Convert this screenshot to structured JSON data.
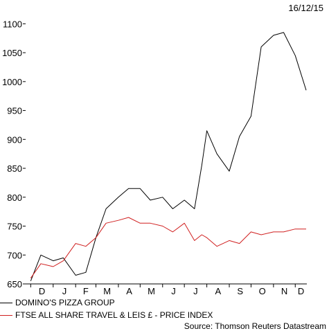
{
  "chart_data": {
    "type": "line",
    "date_label": "16/12/15",
    "y_ticks": [
      650,
      700,
      750,
      800,
      850,
      900,
      950,
      1000,
      1050,
      1100
    ],
    "ylim": [
      650,
      1110
    ],
    "x_ticks": [
      "D",
      "J",
      "F",
      "M",
      "A",
      "M",
      "J",
      "J",
      "A",
      "S",
      "O",
      "N",
      "D"
    ],
    "x": [
      "2014-12-01",
      "2014-12-15",
      "2015-01-01",
      "2015-01-15",
      "2015-02-01",
      "2015-02-15",
      "2015-03-01",
      "2015-03-15",
      "2015-04-01",
      "2015-04-15",
      "2015-05-01",
      "2015-05-15",
      "2015-06-01",
      "2015-06-15",
      "2015-07-01",
      "2015-07-15",
      "2015-07-25",
      "2015-08-01",
      "2015-08-15",
      "2015-09-01",
      "2015-09-15",
      "2015-10-01",
      "2015-10-15",
      "2015-11-01",
      "2015-11-15",
      "2015-12-01",
      "2015-12-16"
    ],
    "series": [
      {
        "name": "DOMINO'S PIZZA GROUP",
        "color": "#000000",
        "values": [
          655,
          700,
          690,
          695,
          665,
          670,
          730,
          780,
          800,
          815,
          815,
          795,
          800,
          780,
          795,
          780,
          855,
          915,
          875,
          845,
          905,
          940,
          1060,
          1080,
          1085,
          1045,
          985
        ]
      },
      {
        "name": "FTSE ALL SHARE TRAVEL & LEIS £ - PRICE INDEX",
        "color": "#d01f1f",
        "values": [
          660,
          685,
          680,
          690,
          720,
          715,
          730,
          755,
          760,
          765,
          755,
          755,
          750,
          740,
          755,
          725,
          735,
          730,
          715,
          725,
          720,
          740,
          735,
          740,
          740,
          745,
          745
        ]
      }
    ],
    "legend_position": "bottom-left",
    "source": "Source: Thomson Reuters Datastream"
  }
}
